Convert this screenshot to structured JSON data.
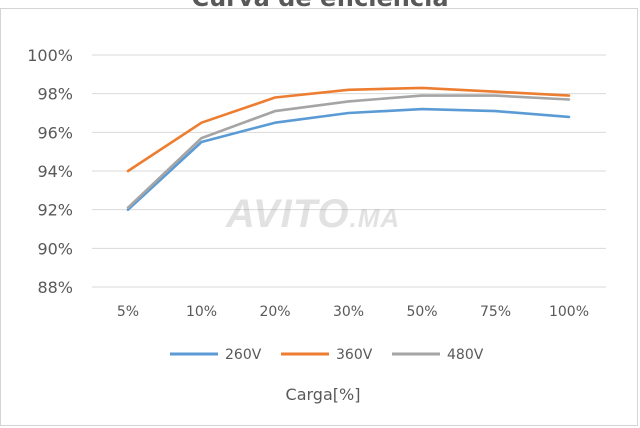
{
  "chart_data": {
    "type": "line",
    "title": "Curva de eficiencia",
    "xlabel": "Carga[%]",
    "ylabel": "",
    "categories": [
      "5%",
      "10%",
      "20%",
      "30%",
      "50%",
      "75%",
      "100%"
    ],
    "y_ticks": [
      "88%",
      "90%",
      "92%",
      "94%",
      "96%",
      "98%",
      "100%"
    ],
    "ylim": [
      88,
      100
    ],
    "grid": true,
    "legend_position": "bottom",
    "series": [
      {
        "name": "260V",
        "color": "#5b9bd5",
        "values": [
          92.0,
          95.5,
          96.5,
          97.0,
          97.2,
          97.1,
          96.8
        ]
      },
      {
        "name": "360V",
        "color": "#ed7d31",
        "values": [
          94.0,
          96.5,
          97.8,
          98.2,
          98.3,
          98.1,
          97.9
        ]
      },
      {
        "name": "480V",
        "color": "#a5a5a5",
        "values": [
          92.1,
          95.7,
          97.1,
          97.6,
          97.9,
          97.9,
          97.7
        ]
      }
    ]
  },
  "watermark": {
    "text": "AVITO",
    "suffix": ".MA"
  }
}
